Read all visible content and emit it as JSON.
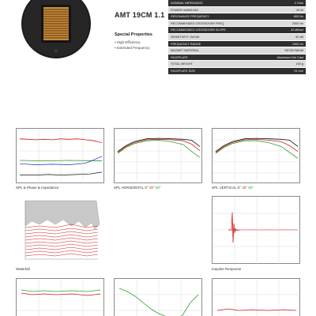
{
  "header": {
    "title": "AMT 19CM 1.1",
    "properties_heading": "Special Properties",
    "properties": [
      "High Efficiency",
      "Extended Frequency"
    ]
  },
  "specs": [
    {
      "key": "NOMINAL IMPEDANCE",
      "value": "4 Ohm"
    },
    {
      "key": "POWER HANDLING",
      "value": "40 W"
    },
    {
      "key": "RESONANCE FREQUENCY",
      "value": "800 Hz"
    },
    {
      "key": "RECOMMENDED CROSSOVER FREQ",
      "value": "2500 Hz"
    },
    {
      "key": "RECOMMENDED CROSSOVER SLOPE",
      "value": "12 dB/oct"
    },
    {
      "key": "SENSITIVITY 1W/1M",
      "value": "92 dB"
    },
    {
      "key": "FREQUENCY RANGE",
      "value": "1600 Hz"
    },
    {
      "key": "MAGNET MATERIAL",
      "value": "NEODYMIUM"
    },
    {
      "key": "FACEPLATE",
      "value": "Aluminium Die Cast"
    },
    {
      "key": "TOTAL WEIGHT",
      "value": "150 g"
    },
    {
      "key": "FACEPLATE SIZE",
      "value": "91 mm"
    }
  ],
  "captions": {
    "spl_impedance": "SPL & Phase & Impedance",
    "spl_horizontal_prefix": "SPL HORIZONTAL",
    "spl_vertical_prefix": "SPL VERTICAL",
    "angle_0": "0°",
    "angle_30": "30°",
    "angle_60": "60°",
    "waterfall": "Waterfall",
    "impulse": "Impulse Response"
  },
  "colors": {
    "red": "#d32020",
    "green": "#2ea02e",
    "blue": "#2020d0",
    "black": "#111111",
    "spec_dark": "#2e2e2e",
    "spec_light": "#dcdcdc"
  },
  "plots": {
    "spl_phase_impedance": {
      "spl": [
        [
          0,
          0.86
        ],
        [
          0.1,
          0.85
        ],
        [
          0.2,
          0.84
        ],
        [
          0.3,
          0.85
        ],
        [
          0.4,
          0.84
        ],
        [
          0.5,
          0.86
        ],
        [
          0.6,
          0.85
        ],
        [
          0.7,
          0.86
        ],
        [
          0.8,
          0.84
        ],
        [
          0.9,
          0.82
        ],
        [
          1,
          0.78
        ]
      ],
      "impedance": [
        [
          0,
          0.12
        ],
        [
          0.2,
          0.12
        ],
        [
          0.35,
          0.13
        ],
        [
          0.5,
          0.12
        ],
        [
          0.7,
          0.13
        ],
        [
          0.85,
          0.14
        ],
        [
          1,
          0.18
        ]
      ],
      "phase": [
        [
          0,
          0.35
        ],
        [
          0.2,
          0.33
        ],
        [
          0.4,
          0.34
        ],
        [
          0.6,
          0.33
        ],
        [
          0.8,
          0.36
        ],
        [
          1,
          0.5
        ]
      ],
      "green": [
        [
          0,
          0.42
        ],
        [
          0.3,
          0.41
        ],
        [
          0.6,
          0.42
        ],
        [
          1,
          0.41
        ]
      ]
    },
    "spl_horizontal": {
      "black": [
        [
          0,
          0.6
        ],
        [
          0.1,
          0.72
        ],
        [
          0.2,
          0.8
        ],
        [
          0.35,
          0.86
        ],
        [
          0.5,
          0.87
        ],
        [
          0.65,
          0.86
        ],
        [
          0.8,
          0.85
        ],
        [
          0.9,
          0.83
        ],
        [
          1,
          0.7
        ]
      ],
      "red": [
        [
          0,
          0.58
        ],
        [
          0.1,
          0.7
        ],
        [
          0.2,
          0.78
        ],
        [
          0.35,
          0.84
        ],
        [
          0.5,
          0.85
        ],
        [
          0.65,
          0.84
        ],
        [
          0.8,
          0.82
        ],
        [
          0.9,
          0.75
        ],
        [
          1,
          0.62
        ]
      ],
      "green": [
        [
          0,
          0.56
        ],
        [
          0.1,
          0.68
        ],
        [
          0.2,
          0.76
        ],
        [
          0.35,
          0.82
        ],
        [
          0.5,
          0.83
        ],
        [
          0.65,
          0.8
        ],
        [
          0.8,
          0.74
        ],
        [
          0.9,
          0.6
        ],
        [
          1,
          0.48
        ]
      ]
    },
    "spl_vertical": {
      "black": [
        [
          0,
          0.6
        ],
        [
          0.1,
          0.72
        ],
        [
          0.2,
          0.8
        ],
        [
          0.35,
          0.86
        ],
        [
          0.5,
          0.87
        ],
        [
          0.65,
          0.86
        ],
        [
          0.8,
          0.85
        ],
        [
          0.9,
          0.83
        ],
        [
          1,
          0.7
        ]
      ],
      "red": [
        [
          0,
          0.58
        ],
        [
          0.1,
          0.7
        ],
        [
          0.2,
          0.78
        ],
        [
          0.35,
          0.84
        ],
        [
          0.5,
          0.85
        ],
        [
          0.65,
          0.83
        ],
        [
          0.8,
          0.8
        ],
        [
          0.9,
          0.72
        ],
        [
          1,
          0.6
        ]
      ],
      "green": [
        [
          0,
          0.56
        ],
        [
          0.1,
          0.68
        ],
        [
          0.2,
          0.76
        ],
        [
          0.35,
          0.82
        ],
        [
          0.5,
          0.82
        ],
        [
          0.65,
          0.78
        ],
        [
          0.8,
          0.7
        ],
        [
          0.9,
          0.58
        ],
        [
          1,
          0.46
        ]
      ]
    }
  }
}
